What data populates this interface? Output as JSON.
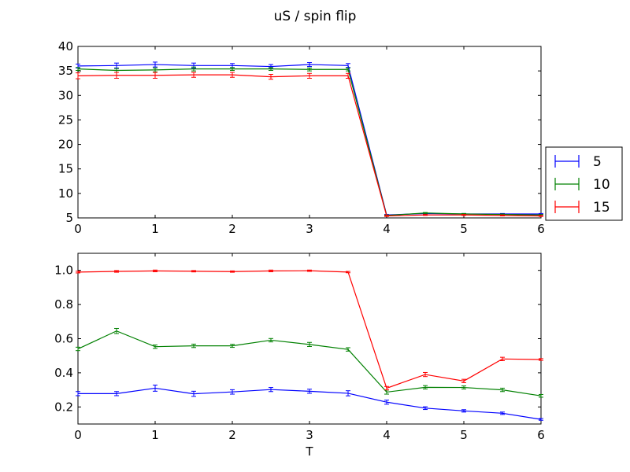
{
  "figure": {
    "title": "uS / spin flip"
  },
  "chart_data": [
    {
      "type": "line",
      "title": "uS / spin flip",
      "xlabel": "",
      "ylabel": "",
      "xlim": [
        0,
        6
      ],
      "ylim": [
        5,
        40
      ],
      "xticks": [
        "0",
        "1",
        "2",
        "3",
        "4",
        "5",
        "6"
      ],
      "yticks": [
        "5",
        "10",
        "15",
        "20",
        "25",
        "30",
        "35",
        "40"
      ],
      "error_bars": true,
      "grid": false,
      "legend_position": "outside-right",
      "x": [
        0,
        0.5,
        1,
        1.5,
        2,
        2.5,
        3,
        3.5,
        4,
        4.5,
        5,
        5.5,
        6
      ],
      "series": [
        {
          "name": "5",
          "color": "#0000ff",
          "values": [
            36.0,
            36.1,
            36.3,
            36.1,
            36.1,
            35.9,
            36.3,
            36.1,
            5.6,
            5.9,
            5.8,
            5.8,
            5.8
          ],
          "errors": [
            0.4,
            0.5,
            0.5,
            0.5,
            0.4,
            0.4,
            0.4,
            0.4,
            0.1,
            0.1,
            0.1,
            0.1,
            0.1
          ]
        },
        {
          "name": "10",
          "color": "#008000",
          "values": [
            35.4,
            35.1,
            35.2,
            35.4,
            35.4,
            35.4,
            35.3,
            35.3,
            5.5,
            6.0,
            5.8,
            5.7,
            5.6
          ],
          "errors": [
            0.3,
            0.4,
            0.4,
            0.4,
            0.3,
            0.3,
            0.3,
            0.3,
            0.1,
            0.1,
            0.1,
            0.1,
            0.1
          ]
        },
        {
          "name": "15",
          "color": "#ff0000",
          "values": [
            34.0,
            34.1,
            34.1,
            34.2,
            34.2,
            33.8,
            34.0,
            34.0,
            5.4,
            5.6,
            5.6,
            5.5,
            5.4
          ],
          "errors": [
            0.6,
            0.6,
            0.6,
            0.5,
            0.5,
            0.5,
            0.5,
            0.5,
            0.1,
            0.1,
            0.1,
            0.1,
            0.1
          ]
        }
      ]
    },
    {
      "type": "line",
      "title": "",
      "xlabel": "T",
      "ylabel": "",
      "xlim": [
        0,
        6
      ],
      "ylim": [
        0.1,
        1.1
      ],
      "xticks": [
        "0",
        "1",
        "2",
        "3",
        "4",
        "5",
        "6"
      ],
      "yticks": [
        "0.2",
        "0.4",
        "0.6",
        "0.8",
        "1.0"
      ],
      "error_bars": true,
      "grid": false,
      "x": [
        0,
        0.5,
        1,
        1.5,
        2,
        2.5,
        3,
        3.5,
        4,
        4.5,
        5,
        5.5,
        6
      ],
      "series": [
        {
          "name": "5",
          "color": "#0000ff",
          "values": [
            0.278,
            0.278,
            0.31,
            0.277,
            0.288,
            0.302,
            0.292,
            0.28,
            0.228,
            0.193,
            0.177,
            0.163,
            0.127
          ],
          "errors": [
            0.012,
            0.012,
            0.018,
            0.015,
            0.013,
            0.012,
            0.012,
            0.015,
            0.012,
            0.008,
            0.007,
            0.007,
            0.005
          ]
        },
        {
          "name": "10",
          "color": "#008000",
          "values": [
            0.54,
            0.645,
            0.553,
            0.558,
            0.558,
            0.591,
            0.566,
            0.537,
            0.287,
            0.315,
            0.314,
            0.3,
            0.265
          ],
          "errors": [
            0.01,
            0.015,
            0.01,
            0.01,
            0.009,
            0.01,
            0.012,
            0.01,
            0.012,
            0.01,
            0.009,
            0.01,
            0.008
          ]
        },
        {
          "name": "15",
          "color": "#ff0000",
          "values": [
            0.99,
            0.994,
            0.997,
            0.995,
            0.993,
            0.997,
            0.998,
            0.99,
            0.31,
            0.39,
            0.352,
            0.481,
            0.478
          ],
          "errors": [
            0.005,
            0.005,
            0.005,
            0.004,
            0.004,
            0.005,
            0.004,
            0.004,
            0.01,
            0.012,
            0.01,
            0.01,
            0.005
          ]
        }
      ]
    }
  ]
}
